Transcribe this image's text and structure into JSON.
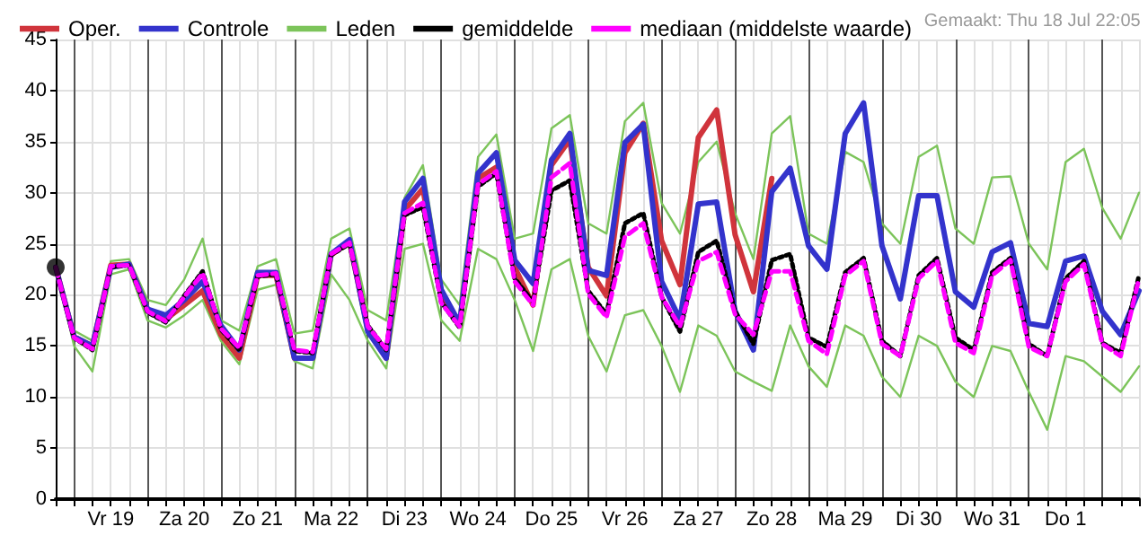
{
  "chart_data": {
    "type": "line",
    "legend": "top",
    "grid": true,
    "marker": "none",
    "annotations": [
      "Gemaakt: Thu 18 Jul 22:05"
    ],
    "categories": [
      null,
      null,
      null,
      "Vr 19",
      null,
      null,
      null,
      "Za 20",
      null,
      null,
      null,
      "Zo 21",
      null,
      null,
      null,
      "Ma 22",
      null,
      null,
      null,
      "Di 23",
      null,
      null,
      null,
      "Wo 24",
      null,
      null,
      null,
      "Do 25",
      null,
      null,
      null,
      "Vr 26",
      null,
      null,
      null,
      "Za 27",
      null,
      null,
      null,
      "Zo 28",
      null,
      null,
      null,
      "Ma 29",
      null,
      null,
      null,
      "Di 30",
      null,
      null,
      null,
      "Wo 31",
      null,
      null,
      null,
      "Do 1",
      null,
      null,
      null,
      null
    ],
    "ylim": [
      0,
      45
    ],
    "yticks": [
      0,
      5,
      10,
      15,
      20,
      25,
      30,
      35,
      40,
      45
    ],
    "series": [
      {
        "name": "Oper.",
        "color": "#d0343c",
        "line_style": "solid",
        "values": [
          22.7,
          15.9,
          15.0,
          22.9,
          23.0,
          18.6,
          17.6,
          19.0,
          20.4,
          16.1,
          13.8,
          21.9,
          21.9,
          13.8,
          13.8,
          23.9,
          25.2,
          16.6,
          13.8,
          28.3,
          30.4,
          19.9,
          17.1,
          31.4,
          32.5,
          22.7,
          19.0,
          32.7,
          35.2,
          22.7,
          19.9,
          33.9,
          36.8,
          25.3,
          21.0,
          35.4,
          38.1,
          25.9,
          20.3,
          31.4,
          null,
          null,
          null,
          null,
          null,
          null,
          null,
          null,
          null,
          null,
          null,
          null,
          null,
          null,
          null,
          null,
          null,
          null,
          null,
          null
        ]
      },
      {
        "name": "Controle",
        "color": "#3333cc",
        "line_style": "solid",
        "values": [
          22.7,
          15.9,
          15.0,
          22.7,
          23.0,
          18.6,
          18.0,
          19.5,
          21.3,
          17.0,
          14.6,
          22.2,
          22.2,
          13.8,
          13.8,
          24.0,
          25.4,
          16.4,
          13.8,
          29.1,
          31.4,
          20.5,
          17.2,
          31.9,
          33.9,
          23.4,
          21.1,
          33.2,
          35.8,
          22.4,
          21.9,
          34.9,
          36.7,
          21.3,
          17.6,
          28.9,
          29.1,
          18.4,
          14.6,
          30.1,
          32.4,
          24.8,
          22.5,
          35.8,
          38.8,
          24.8,
          19.6,
          29.7,
          29.7,
          20.3,
          18.8,
          24.2,
          25.1,
          17.2,
          16.9,
          23.3,
          23.8,
          18.4,
          16.1,
          20.4
        ]
      },
      {
        "name": "Leden",
        "color": "#7cc45a",
        "line_style": "solid",
        "values": [
          22.7,
          16.5,
          15.5,
          23.3,
          23.5,
          19.5,
          19.0,
          21.5,
          25.5,
          17.5,
          16.5,
          22.8,
          23.5,
          16.2,
          16.5,
          25.5,
          26.5,
          18.5,
          17.5,
          29.5,
          32.7,
          21.5,
          19.0,
          33.5,
          35.7,
          25.5,
          26.0,
          36.3,
          37.6,
          27.0,
          26.0,
          37.0,
          38.8,
          29.0,
          26.0,
          33.0,
          35.0,
          28.0,
          23.5,
          35.8,
          37.5,
          26.0,
          25.0,
          34.0,
          33.0,
          27.0,
          25.0,
          33.5,
          34.6,
          26.5,
          25.0,
          31.5,
          31.6,
          25.0,
          22.5,
          33.0,
          34.3,
          28.5,
          25.5,
          30.0
        ]
      },
      {
        "name": "gemiddelde",
        "color": "#000000",
        "line_style": "dotted",
        "values": [
          22.7,
          15.8,
          14.6,
          22.7,
          22.9,
          18.3,
          17.3,
          19.9,
          22.3,
          16.6,
          14.6,
          21.8,
          22.0,
          14.5,
          14.3,
          23.9,
          25.0,
          17.0,
          14.6,
          27.8,
          28.6,
          19.3,
          16.8,
          30.6,
          31.9,
          21.6,
          19.3,
          30.2,
          31.2,
          20.4,
          18.1,
          27.0,
          28.0,
          19.8,
          16.4,
          24.2,
          25.3,
          18.4,
          15.2,
          23.4,
          24.0,
          15.8,
          14.9,
          22.2,
          23.6,
          15.5,
          14.0,
          21.9,
          23.6,
          15.8,
          14.6,
          22.2,
          23.6,
          15.2,
          14.0,
          21.6,
          23.3,
          15.3,
          14.3,
          21.9
        ]
      },
      {
        "name": "mediaan (middelste waarde)",
        "color": "#ff00ff",
        "line_style": "dashed",
        "values": [
          22.7,
          15.8,
          14.7,
          22.8,
          22.9,
          18.4,
          17.4,
          19.8,
          22.1,
          16.7,
          14.8,
          21.9,
          22.1,
          14.6,
          14.4,
          24.0,
          25.1,
          16.9,
          14.7,
          28.0,
          29.0,
          19.2,
          16.9,
          30.8,
          32.1,
          21.3,
          19.0,
          31.5,
          32.9,
          20.1,
          17.8,
          25.7,
          27.0,
          19.8,
          16.9,
          23.3,
          24.2,
          18.1,
          16.1,
          22.3,
          22.3,
          15.5,
          14.2,
          21.9,
          23.3,
          15.2,
          14.0,
          21.6,
          23.3,
          15.3,
          14.3,
          21.9,
          23.4,
          14.9,
          14.0,
          21.3,
          23.0,
          15.2,
          14.0,
          21.6
        ]
      },
      {
        "color": "#7cc45a",
        "line_style": "solid",
        "values": [
          22.7,
          15.0,
          12.5,
          22.0,
          22.5,
          17.5,
          16.8,
          18.0,
          19.5,
          15.5,
          13.2,
          20.5,
          21.0,
          13.5,
          12.8,
          22.0,
          19.5,
          15.5,
          12.8,
          24.5,
          25.0,
          17.5,
          15.5,
          24.5,
          23.5,
          19.5,
          14.5,
          22.5,
          23.5,
          16.0,
          12.5,
          18.0,
          18.5,
          15.0,
          10.5,
          17.0,
          16.0,
          12.5,
          11.5,
          10.6,
          17.0,
          13.0,
          11.0,
          17.0,
          16.0,
          12.0,
          10.0,
          16.0,
          15.0,
          11.5,
          10.0,
          15.0,
          14.5,
          10.5,
          6.8,
          14.0,
          13.5,
          12.0,
          10.5,
          13.0
        ]
      },
      {
        "type": "scatter",
        "color": "#000000",
        "marker": "circle",
        "values": [
          22.7,
          null,
          null,
          null,
          null,
          null,
          null,
          null,
          null,
          null,
          null,
          null,
          null,
          null,
          null,
          null,
          null,
          null,
          null,
          null,
          null,
          null,
          null,
          null,
          null,
          null,
          null,
          null,
          null,
          null,
          null,
          null,
          null,
          null,
          null,
          null,
          null,
          null,
          null,
          null,
          null,
          null,
          null,
          null,
          null,
          null,
          null,
          null,
          null,
          null,
          null,
          null,
          null,
          null,
          null,
          null,
          null,
          null,
          null,
          null
        ]
      }
    ]
  }
}
